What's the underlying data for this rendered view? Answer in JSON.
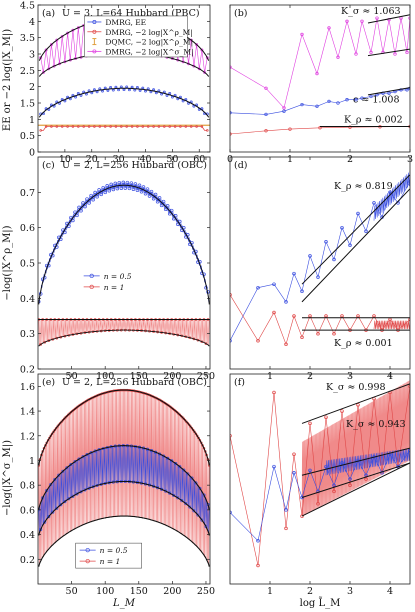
{
  "colors": {
    "blue": "#3b4fe0",
    "red": "#e04848",
    "magenta": "#e040e0",
    "orange": "#e0a040",
    "black": "#111111",
    "fillRed": "#f08a8a"
  },
  "axis_labels": {
    "ylabel_top": "EE or −2 log(|X_M|)",
    "ylabel_mid": "−log(|X^ρ_M|)",
    "ylabel_bot": "−log(|X^σ_M|)",
    "xlabel_left": "L_M",
    "xlabel_right": "log L̃_M"
  },
  "chart_data": [
    {
      "id": "a",
      "type": "line",
      "panel_label": "(a)",
      "title": "U = 3, L=64 Hubbard (PBC)",
      "xlim": [
        0,
        64
      ],
      "ylim": [
        0,
        4.5
      ],
      "xticks": [
        10,
        20,
        30,
        40,
        50,
        60
      ],
      "yticks": [
        0,
        0.5,
        1,
        1.5,
        2,
        2.5,
        3,
        3.5,
        4,
        4.5
      ],
      "legend": [
        {
          "label": "DMRG, EE",
          "color": "#3b4fe0",
          "marker": "circle"
        },
        {
          "label": "DMRG, −2 log|X^ρ_M|",
          "color": "#e04848",
          "marker": "circle"
        },
        {
          "label": "DQMC, −2 log|X^ρ_M|",
          "color": "#e0a040",
          "marker": "errorbar"
        },
        {
          "label": "DMRG, −2 log|X^σ_M|",
          "color": "#e040e0",
          "marker": "circle"
        }
      ],
      "series": [
        {
          "name": "DMRG, EE",
          "L": 64,
          "ee_center": 1.95,
          "ee_edge": 0.93
        },
        {
          "name": "DMRG, −2 log|X^ρ_M|",
          "level": 0.78
        },
        {
          "name": "DQMC, −2 log|X^ρ_M|",
          "level": 0.78
        },
        {
          "name": "DMRG, −2 log|X^σ_M|",
          "upper_center": 4.1,
          "upper_edge": 2.6,
          "lower_center": 3.05,
          "lower_edge": 2.2
        }
      ]
    },
    {
      "id": "b",
      "type": "line",
      "panel_label": "(b)",
      "xlim": [
        0,
        3
      ],
      "ylim": [
        0,
        4.5
      ],
      "xticks": [
        0,
        1,
        2,
        3
      ],
      "annotations": [
        "K_σ ≈ 1.063",
        "c ≈ 1.008",
        "K_ρ ≈ 0.002"
      ],
      "series": [
        {
          "name": "magenta",
          "x": [
            0.0,
            0.6,
            0.9,
            1.2,
            1.45,
            1.65,
            1.8,
            1.95,
            2.1,
            2.2,
            2.35,
            2.45,
            2.55,
            2.65,
            2.75,
            2.85,
            2.95,
            3.0
          ],
          "y": [
            2.6,
            1.95,
            1.35,
            3.6,
            2.4,
            3.8,
            2.9,
            4.0,
            3.0,
            4.0,
            3.05,
            4.1,
            3.05,
            4.05,
            3.0,
            4.1,
            3.05,
            4.1
          ]
        },
        {
          "name": "blue",
          "x": [
            0.0,
            0.6,
            0.9,
            1.2,
            1.45,
            1.65,
            1.8,
            1.95,
            2.1,
            2.2,
            2.35,
            2.45,
            2.55,
            2.65,
            2.75,
            2.85,
            2.95,
            3.0
          ],
          "y": [
            1.2,
            1.15,
            1.25,
            1.45,
            1.4,
            1.55,
            1.5,
            1.6,
            1.6,
            1.65,
            1.7,
            1.75,
            1.8,
            1.8,
            1.85,
            1.9,
            1.9,
            1.95
          ]
        },
        {
          "name": "red",
          "x": [
            0.0,
            0.6,
            1.0,
            1.5,
            2.0,
            2.5,
            3.0
          ],
          "y": [
            0.55,
            0.65,
            0.7,
            0.74,
            0.76,
            0.77,
            0.78
          ]
        }
      ]
    },
    {
      "id": "c",
      "type": "line",
      "panel_label": "(c)",
      "title": "U = 2, L=256 Hubbard (OBC)",
      "xlim": [
        0,
        256
      ],
      "ylim": [
        0.2,
        0.8
      ],
      "xticks": [
        50,
        100,
        150,
        200,
        250
      ],
      "yticks": [
        0.2,
        0.3,
        0.4,
        0.5,
        0.6,
        0.7
      ],
      "legend": [
        {
          "label": "n = 0.5",
          "color": "#3b4fe0"
        },
        {
          "label": "n = 1",
          "color": "#e04848"
        }
      ],
      "series": [
        {
          "name": "n = 0.5",
          "center": 0.72,
          "edge": 0.35
        },
        {
          "name": "n = 1",
          "upper": 0.34,
          "lower_center": 0.31,
          "lower_edge": 0.26
        }
      ]
    },
    {
      "id": "d",
      "type": "line",
      "panel_label": "(d)",
      "xlim": [
        0,
        4.5
      ],
      "ylim": [
        0.2,
        0.8
      ],
      "xticks": [
        1,
        2,
        3,
        4
      ],
      "annotations": [
        "K_ρ ≈ 0.819",
        "K_ρ ≈ 0.001"
      ],
      "series": [
        {
          "name": "n = 0.5",
          "x": [
            0.0,
            0.7,
            1.1,
            1.4,
            1.6,
            1.8,
            2.0,
            2.2,
            2.4,
            2.6,
            2.8,
            3.0,
            3.2,
            3.4,
            3.6,
            3.8,
            4.0,
            4.2,
            4.5
          ],
          "y": [
            0.28,
            0.43,
            0.44,
            0.39,
            0.47,
            0.42,
            0.52,
            0.46,
            0.56,
            0.51,
            0.6,
            0.55,
            0.64,
            0.59,
            0.67,
            0.63,
            0.7,
            0.67,
            0.73
          ]
        },
        {
          "name": "n = 1",
          "x": [
            0.0,
            0.7,
            1.1,
            1.4,
            1.6,
            1.8,
            2.0,
            2.2,
            2.4,
            2.6,
            2.8,
            3.0,
            3.2,
            3.4,
            3.6,
            3.8,
            4.0,
            4.2,
            4.5
          ],
          "y": [
            0.41,
            0.28,
            0.36,
            0.27,
            0.35,
            0.29,
            0.35,
            0.3,
            0.35,
            0.3,
            0.35,
            0.31,
            0.35,
            0.31,
            0.35,
            0.31,
            0.34,
            0.31,
            0.34
          ]
        }
      ]
    },
    {
      "id": "e",
      "type": "line",
      "panel_label": "(e)",
      "title": "U = 2, L=256 Hubbard (OBC)",
      "xlim": [
        0,
        256
      ],
      "ylim": [
        0,
        1.7
      ],
      "xticks": [
        50,
        100,
        150,
        200,
        250
      ],
      "yticks": [
        0.2,
        0.4,
        0.6,
        0.8,
        1,
        1.2,
        1.4,
        1.6
      ],
      "legend": [
        {
          "label": "n = 0.5",
          "color": "#3b4fe0"
        },
        {
          "label": "n = 1",
          "color": "#e04848"
        }
      ],
      "series": [
        {
          "name": "n = 1",
          "upper_center": 1.57,
          "upper_edge": 0.9,
          "lower_center": 0.55,
          "lower_edge": 0.1
        },
        {
          "name": "n = 0.5",
          "upper_center": 1.12,
          "upper_edge": 0.55,
          "lower_center": 0.83,
          "lower_edge": 0.35
        }
      ]
    },
    {
      "id": "f",
      "type": "line",
      "panel_label": "(f)",
      "xlim": [
        0,
        4.5
      ],
      "ylim": [
        0,
        1.7
      ],
      "xticks": [
        1,
        2,
        3,
        4
      ],
      "annotations": [
        "K_σ ≈ 0.998",
        "K_σ ≈ 0.943"
      ],
      "series": [
        {
          "name": "n = 1",
          "x": [
            0.0,
            0.7,
            1.1,
            1.4,
            1.6,
            1.8,
            2.0,
            2.2,
            2.4,
            2.6,
            2.8,
            3.0,
            3.2,
            3.4,
            3.6,
            3.8,
            4.0,
            4.2,
            4.5
          ],
          "y": [
            1.2,
            0.15,
            1.55,
            0.45,
            1.05,
            0.55,
            1.3,
            0.65,
            1.35,
            0.75,
            1.4,
            0.8,
            1.45,
            0.85,
            1.5,
            0.9,
            1.55,
            0.95,
            1.6
          ]
        },
        {
          "name": "n = 0.5",
          "x": [
            0.0,
            0.7,
            1.1,
            1.4,
            1.6,
            1.8,
            2.0,
            2.2,
            2.4,
            2.6,
            2.8,
            3.0,
            3.2,
            3.4,
            3.6,
            3.8,
            4.0,
            4.2,
            4.5
          ],
          "y": [
            0.58,
            0.35,
            0.95,
            0.6,
            0.9,
            0.7,
            0.92,
            0.75,
            0.95,
            0.8,
            0.98,
            0.85,
            1.0,
            0.88,
            1.03,
            0.9,
            1.05,
            0.95,
            1.08
          ]
        }
      ]
    }
  ]
}
